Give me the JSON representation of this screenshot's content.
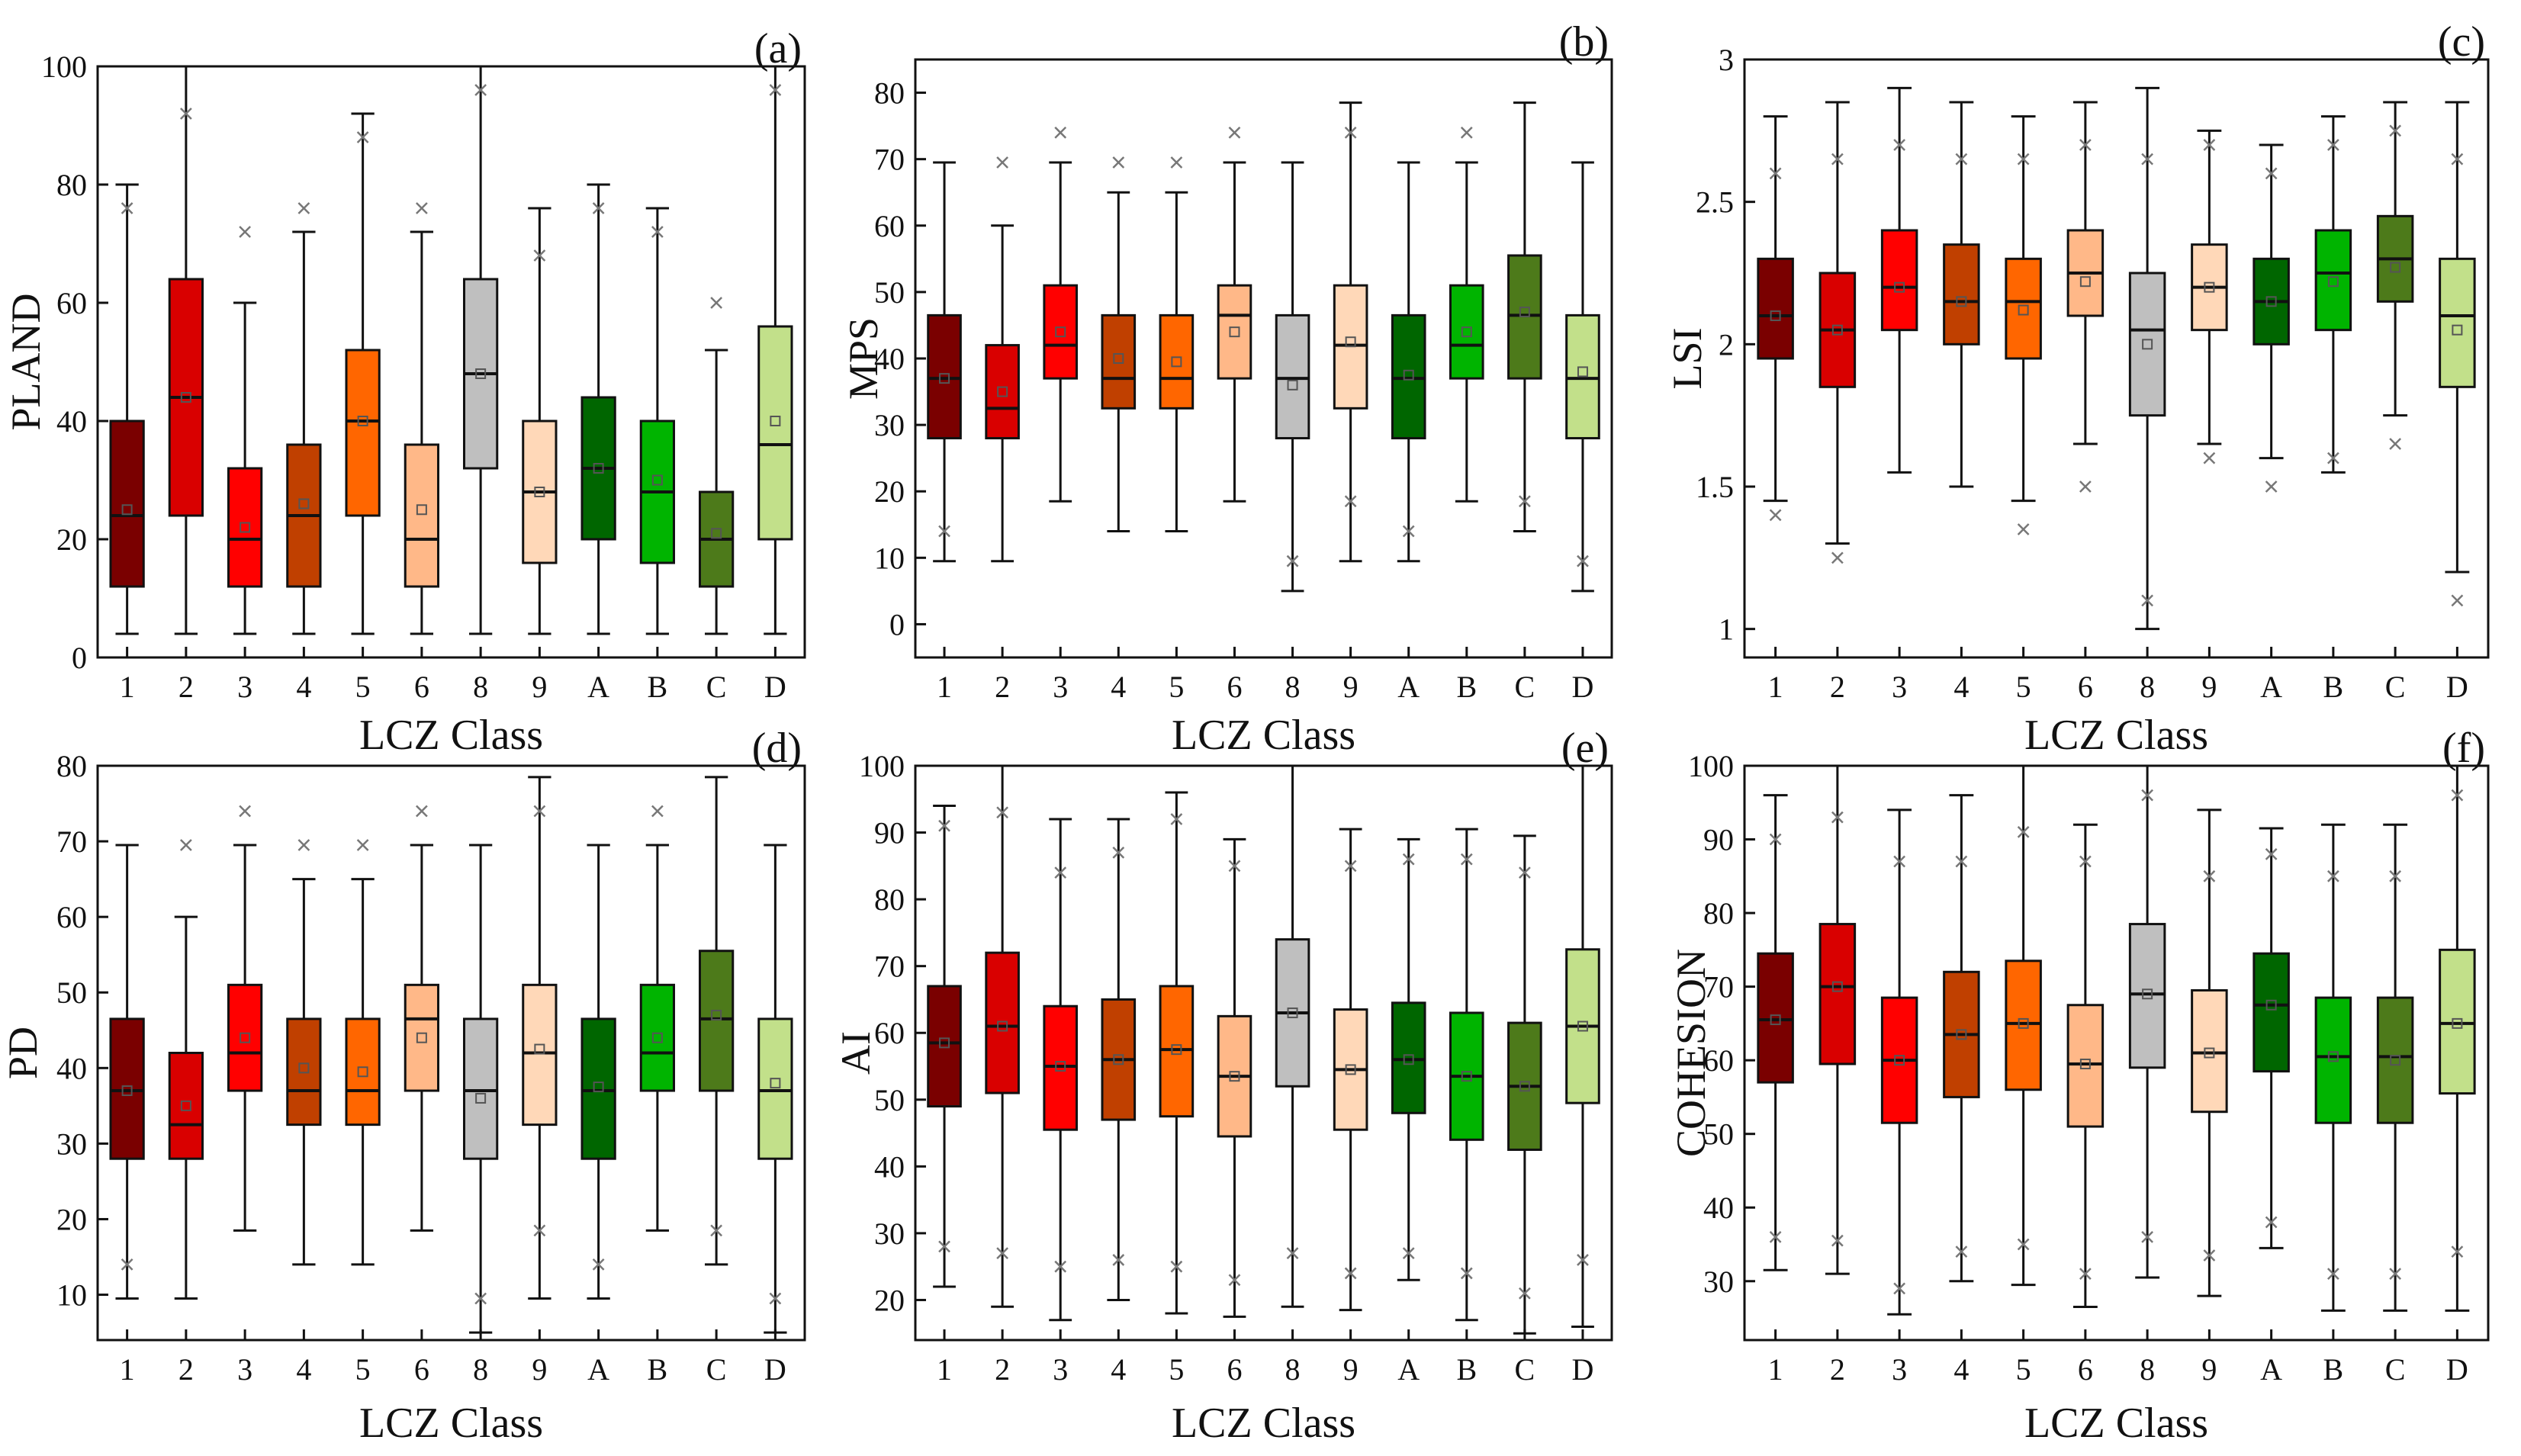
{
  "colors": [
    "#7a0000",
    "#d90000",
    "#ff0000",
    "#c04000",
    "#ff6600",
    "#ffb888",
    "#bfbfbf",
    "#ffd8b8",
    "#006600",
    "#00b400",
    "#4d7a1a",
    "#c2e08a"
  ],
  "chart_data": [
    {
      "type": "box",
      "panel": "(a)",
      "ylabel": "PLAND",
      "xlabel": "LCZ Class",
      "categories": [
        "1",
        "2",
        "3",
        "4",
        "5",
        "6",
        "8",
        "9",
        "A",
        "B",
        "C",
        "D"
      ],
      "ylim": [
        0,
        100
      ],
      "yticks": [
        0,
        20,
        40,
        60,
        80,
        100
      ],
      "boxes": [
        {
          "min": 4,
          "q1": 12,
          "median": 24,
          "q3": 40,
          "max": 80,
          "mean": 25,
          "outliers": [
            76
          ]
        },
        {
          "min": 4,
          "q1": 24,
          "median": 44,
          "q3": 64,
          "max": 100,
          "mean": 44,
          "outliers": [
            92
          ]
        },
        {
          "min": 4,
          "q1": 12,
          "median": 20,
          "q3": 32,
          "max": 60,
          "mean": 22,
          "outliers": [
            72
          ]
        },
        {
          "min": 4,
          "q1": 12,
          "median": 24,
          "q3": 36,
          "max": 72,
          "mean": 26,
          "outliers": [
            76
          ]
        },
        {
          "min": 4,
          "q1": 24,
          "median": 40,
          "q3": 52,
          "max": 92,
          "mean": 40,
          "outliers": [
            88
          ]
        },
        {
          "min": 4,
          "q1": 12,
          "median": 20,
          "q3": 36,
          "max": 72,
          "mean": 25,
          "outliers": [
            76
          ]
        },
        {
          "min": 4,
          "q1": 32,
          "median": 48,
          "q3": 64,
          "max": 100,
          "mean": 48,
          "outliers": [
            96
          ]
        },
        {
          "min": 4,
          "q1": 16,
          "median": 28,
          "q3": 40,
          "max": 76,
          "mean": 28,
          "outliers": [
            68
          ]
        },
        {
          "min": 4,
          "q1": 20,
          "median": 32,
          "q3": 44,
          "max": 80,
          "mean": 32,
          "outliers": [
            76
          ]
        },
        {
          "min": 4,
          "q1": 16,
          "median": 28,
          "q3": 40,
          "max": 76,
          "mean": 30,
          "outliers": [
            72
          ]
        },
        {
          "min": 4,
          "q1": 12,
          "median": 20,
          "q3": 28,
          "max": 52,
          "mean": 21,
          "outliers": [
            60
          ]
        },
        {
          "min": 4,
          "q1": 20,
          "median": 36,
          "q3": 56,
          "max": 100,
          "mean": 40,
          "outliers": [
            96
          ]
        }
      ]
    },
    {
      "type": "box",
      "panel": "(b)",
      "ylabel": "MPS",
      "xlabel": "LCZ Class",
      "categories": [
        "1",
        "2",
        "3",
        "4",
        "5",
        "6",
        "8",
        "9",
        "A",
        "B",
        "C",
        "D"
      ],
      "ylim": [
        -5,
        85
      ],
      "yticks": [
        0,
        10,
        20,
        30,
        40,
        50,
        60,
        70,
        80
      ],
      "boxes": [
        {
          "min": 9.5,
          "q1": 28,
          "median": 37,
          "q3": 46.5,
          "max": 69.5,
          "mean": 37,
          "outliers": [
            14
          ]
        },
        {
          "min": 9.5,
          "q1": 28,
          "median": 32.5,
          "q3": 42,
          "max": 60,
          "mean": 35,
          "outliers": [
            69.5
          ]
        },
        {
          "min": 18.5,
          "q1": 37,
          "median": 42,
          "q3": 51,
          "max": 69.5,
          "mean": 44,
          "outliers": [
            74
          ]
        },
        {
          "min": 14,
          "q1": 32.5,
          "median": 37,
          "q3": 46.5,
          "max": 65,
          "mean": 40,
          "outliers": [
            69.5
          ]
        },
        {
          "min": 14,
          "q1": 32.5,
          "median": 37,
          "q3": 46.5,
          "max": 65,
          "mean": 39.5,
          "outliers": [
            69.5
          ]
        },
        {
          "min": 18.5,
          "q1": 37,
          "median": 46.5,
          "q3": 51,
          "max": 69.5,
          "mean": 44,
          "outliers": [
            74
          ]
        },
        {
          "min": 5,
          "q1": 28,
          "median": 37,
          "q3": 46.5,
          "max": 69.5,
          "mean": 36,
          "outliers": [
            9.5
          ]
        },
        {
          "min": 9.5,
          "q1": 32.5,
          "median": 42,
          "q3": 51,
          "max": 78.5,
          "mean": 42.5,
          "outliers": [
            74,
            18.5
          ]
        },
        {
          "min": 9.5,
          "q1": 28,
          "median": 37,
          "q3": 46.5,
          "max": 69.5,
          "mean": 37.5,
          "outliers": [
            14
          ]
        },
        {
          "min": 18.5,
          "q1": 37,
          "median": 42,
          "q3": 51,
          "max": 69.5,
          "mean": 44,
          "outliers": [
            74
          ]
        },
        {
          "min": 14,
          "q1": 37,
          "median": 46.5,
          "q3": 55.5,
          "max": 78.5,
          "mean": 47,
          "outliers": [
            18.5
          ]
        },
        {
          "min": 5,
          "q1": 28,
          "median": 37,
          "q3": 46.5,
          "max": 69.5,
          "mean": 38,
          "outliers": [
            9.5
          ]
        }
      ]
    },
    {
      "type": "box",
      "panel": "(c)",
      "ylabel": "LSI",
      "xlabel": "LCZ Class",
      "categories": [
        "1",
        "2",
        "3",
        "4",
        "5",
        "6",
        "8",
        "9",
        "A",
        "B",
        "C",
        "D"
      ],
      "ylim": [
        0.9,
        3.0
      ],
      "yticks": [
        1.0,
        1.5,
        2.0,
        2.5,
        3.0
      ],
      "boxes": [
        {
          "min": 1.45,
          "q1": 1.95,
          "median": 2.1,
          "q3": 2.3,
          "max": 2.8,
          "mean": 2.1,
          "outliers": [
            1.4,
            2.6
          ]
        },
        {
          "min": 1.3,
          "q1": 1.85,
          "median": 2.05,
          "q3": 2.25,
          "max": 2.85,
          "mean": 2.05,
          "outliers": [
            1.25,
            2.65
          ]
        },
        {
          "min": 1.55,
          "q1": 2.05,
          "median": 2.2,
          "q3": 2.4,
          "max": 2.9,
          "mean": 2.2,
          "outliers": [
            2.7
          ]
        },
        {
          "min": 1.5,
          "q1": 2.0,
          "median": 2.15,
          "q3": 2.35,
          "max": 2.85,
          "mean": 2.15,
          "outliers": [
            2.65
          ]
        },
        {
          "min": 1.45,
          "q1": 1.95,
          "median": 2.15,
          "q3": 2.3,
          "max": 2.8,
          "mean": 2.12,
          "outliers": [
            1.35,
            2.65
          ]
        },
        {
          "min": 1.65,
          "q1": 2.1,
          "median": 2.25,
          "q3": 2.4,
          "max": 2.85,
          "mean": 2.22,
          "outliers": [
            1.5,
            2.7
          ]
        },
        {
          "min": 1.0,
          "q1": 1.75,
          "median": 2.05,
          "q3": 2.25,
          "max": 2.9,
          "mean": 2.0,
          "outliers": [
            1.1,
            2.65
          ]
        },
        {
          "min": 1.65,
          "q1": 2.05,
          "median": 2.2,
          "q3": 2.35,
          "max": 2.75,
          "mean": 2.2,
          "outliers": [
            1.6,
            2.7
          ]
        },
        {
          "min": 1.6,
          "q1": 2.0,
          "median": 2.15,
          "q3": 2.3,
          "max": 2.7,
          "mean": 2.15,
          "outliers": [
            1.5,
            2.6
          ]
        },
        {
          "min": 1.55,
          "q1": 2.05,
          "median": 2.25,
          "q3": 2.4,
          "max": 2.8,
          "mean": 2.22,
          "outliers": [
            1.6,
            2.7
          ]
        },
        {
          "min": 1.75,
          "q1": 2.15,
          "median": 2.3,
          "q3": 2.45,
          "max": 2.85,
          "mean": 2.27,
          "outliers": [
            1.65,
            2.75
          ]
        },
        {
          "min": 1.2,
          "q1": 1.85,
          "median": 2.1,
          "q3": 2.3,
          "max": 2.85,
          "mean": 2.05,
          "outliers": [
            1.1,
            2.65
          ]
        }
      ]
    },
    {
      "type": "box",
      "panel": "(d)",
      "ylabel": "PD",
      "xlabel": "LCZ Class",
      "categories": [
        "1",
        "2",
        "3",
        "4",
        "5",
        "6",
        "8",
        "9",
        "A",
        "B",
        "C",
        "D"
      ],
      "ylim": [
        4,
        80
      ],
      "yticks": [
        10,
        20,
        30,
        40,
        50,
        60,
        70,
        80
      ],
      "boxes": [
        {
          "min": 9.5,
          "q1": 28,
          "median": 37,
          "q3": 46.5,
          "max": 69.5,
          "mean": 37,
          "outliers": [
            14
          ]
        },
        {
          "min": 9.5,
          "q1": 28,
          "median": 32.5,
          "q3": 42,
          "max": 60,
          "mean": 35,
          "outliers": [
            69.5
          ]
        },
        {
          "min": 18.5,
          "q1": 37,
          "median": 42,
          "q3": 51,
          "max": 69.5,
          "mean": 44,
          "outliers": [
            74
          ]
        },
        {
          "min": 14,
          "q1": 32.5,
          "median": 37,
          "q3": 46.5,
          "max": 65,
          "mean": 40,
          "outliers": [
            69.5
          ]
        },
        {
          "min": 14,
          "q1": 32.5,
          "median": 37,
          "q3": 46.5,
          "max": 65,
          "mean": 39.5,
          "outliers": [
            69.5
          ]
        },
        {
          "min": 18.5,
          "q1": 37,
          "median": 46.5,
          "q3": 51,
          "max": 69.5,
          "mean": 44,
          "outliers": [
            74
          ]
        },
        {
          "min": 5,
          "q1": 28,
          "median": 37,
          "q3": 46.5,
          "max": 69.5,
          "mean": 36,
          "outliers": [
            9.5
          ]
        },
        {
          "min": 9.5,
          "q1": 32.5,
          "median": 42,
          "q3": 51,
          "max": 78.5,
          "mean": 42.5,
          "outliers": [
            74,
            18.5
          ]
        },
        {
          "min": 9.5,
          "q1": 28,
          "median": 37,
          "q3": 46.5,
          "max": 69.5,
          "mean": 37.5,
          "outliers": [
            14
          ]
        },
        {
          "min": 18.5,
          "q1": 37,
          "median": 42,
          "q3": 51,
          "max": 69.5,
          "mean": 44,
          "outliers": [
            74
          ]
        },
        {
          "min": 14,
          "q1": 37,
          "median": 46.5,
          "q3": 55.5,
          "max": 78.5,
          "mean": 47,
          "outliers": [
            18.5
          ]
        },
        {
          "min": 5,
          "q1": 28,
          "median": 37,
          "q3": 46.5,
          "max": 69.5,
          "mean": 38,
          "outliers": [
            9.5
          ]
        }
      ]
    },
    {
      "type": "box",
      "panel": "(e)",
      "ylabel": "AI",
      "xlabel": "LCZ Class",
      "categories": [
        "1",
        "2",
        "3",
        "4",
        "5",
        "6",
        "8",
        "9",
        "A",
        "B",
        "C",
        "D"
      ],
      "ylim": [
        14,
        100
      ],
      "yticks": [
        20,
        30,
        40,
        50,
        60,
        70,
        80,
        90,
        100
      ],
      "boxes": [
        {
          "min": 22,
          "q1": 49,
          "median": 58.5,
          "q3": 67,
          "max": 94,
          "mean": 58.5,
          "outliers": [
            28,
            91
          ]
        },
        {
          "min": 19,
          "q1": 51,
          "median": 61,
          "q3": 72,
          "max": 100,
          "mean": 61,
          "outliers": [
            27,
            93
          ]
        },
        {
          "min": 17,
          "q1": 45.5,
          "median": 55,
          "q3": 64,
          "max": 92,
          "mean": 55,
          "outliers": [
            25,
            84
          ]
        },
        {
          "min": 20,
          "q1": 47,
          "median": 56,
          "q3": 65,
          "max": 92,
          "mean": 56,
          "outliers": [
            26,
            87
          ]
        },
        {
          "min": 18,
          "q1": 47.5,
          "median": 57.5,
          "q3": 67,
          "max": 96,
          "mean": 57.5,
          "outliers": [
            25,
            92
          ]
        },
        {
          "min": 17.5,
          "q1": 44.5,
          "median": 53.5,
          "q3": 62.5,
          "max": 89,
          "mean": 53.5,
          "outliers": [
            23,
            85
          ]
        },
        {
          "min": 19,
          "q1": 52,
          "median": 63,
          "q3": 74,
          "max": 100,
          "mean": 63,
          "outliers": [
            27
          ]
        },
        {
          "min": 18.5,
          "q1": 45.5,
          "median": 54.5,
          "q3": 63.5,
          "max": 90.5,
          "mean": 54.5,
          "outliers": [
            24,
            85
          ]
        },
        {
          "min": 23,
          "q1": 48,
          "median": 56,
          "q3": 64.5,
          "max": 89,
          "mean": 56,
          "outliers": [
            27,
            86
          ]
        },
        {
          "min": 17,
          "q1": 44,
          "median": 53.5,
          "q3": 63,
          "max": 90.5,
          "mean": 53.5,
          "outliers": [
            24,
            86
          ]
        },
        {
          "min": 15,
          "q1": 42.5,
          "median": 52,
          "q3": 61.5,
          "max": 89.5,
          "mean": 52,
          "outliers": [
            21,
            84
          ]
        },
        {
          "min": 16,
          "q1": 49.5,
          "median": 61,
          "q3": 72.5,
          "max": 100,
          "mean": 61,
          "outliers": [
            26
          ]
        }
      ]
    },
    {
      "type": "box",
      "panel": "(f)",
      "ylabel": "COHESION",
      "xlabel": "LCZ Class",
      "categories": [
        "1",
        "2",
        "3",
        "4",
        "5",
        "6",
        "8",
        "9",
        "A",
        "B",
        "C",
        "D"
      ],
      "ylim": [
        22,
        100
      ],
      "yticks": [
        30,
        40,
        50,
        60,
        70,
        80,
        90,
        100
      ],
      "boxes": [
        {
          "min": 31.5,
          "q1": 57,
          "median": 65.5,
          "q3": 74.5,
          "max": 96,
          "mean": 65.5,
          "outliers": [
            36,
            90
          ]
        },
        {
          "min": 31,
          "q1": 59.5,
          "median": 70,
          "q3": 78.5,
          "max": 100,
          "mean": 70,
          "outliers": [
            35.5,
            93
          ]
        },
        {
          "min": 25.5,
          "q1": 51.5,
          "median": 60,
          "q3": 68.5,
          "max": 94,
          "mean": 60,
          "outliers": [
            29,
            87
          ]
        },
        {
          "min": 30,
          "q1": 55,
          "median": 63.5,
          "q3": 72,
          "max": 96,
          "mean": 63.5,
          "outliers": [
            34,
            87
          ]
        },
        {
          "min": 29.5,
          "q1": 56,
          "median": 65,
          "q3": 73.5,
          "max": 100,
          "mean": 65,
          "outliers": [
            35,
            91
          ]
        },
        {
          "min": 26.5,
          "q1": 51,
          "median": 59.5,
          "q3": 67.5,
          "max": 92,
          "mean": 59.5,
          "outliers": [
            31,
            87
          ]
        },
        {
          "min": 30.5,
          "q1": 59,
          "median": 69,
          "q3": 78.5,
          "max": 100,
          "mean": 69,
          "outliers": [
            36,
            96
          ]
        },
        {
          "min": 28,
          "q1": 53,
          "median": 61,
          "q3": 69.5,
          "max": 94,
          "mean": 61,
          "outliers": [
            33.5,
            85
          ]
        },
        {
          "min": 34.5,
          "q1": 58.5,
          "median": 67.5,
          "q3": 74.5,
          "max": 91.5,
          "mean": 67.5,
          "outliers": [
            38,
            88
          ]
        },
        {
          "min": 26,
          "q1": 51.5,
          "median": 60.5,
          "q3": 68.5,
          "max": 92,
          "mean": 60.5,
          "outliers": [
            31,
            85
          ]
        },
        {
          "min": 26,
          "q1": 51.5,
          "median": 60.5,
          "q3": 68.5,
          "max": 92,
          "mean": 60,
          "outliers": [
            31,
            85
          ]
        },
        {
          "min": 26,
          "q1": 55.5,
          "median": 65,
          "q3": 75,
          "max": 100,
          "mean": 65,
          "outliers": [
            34,
            96
          ]
        }
      ]
    }
  ]
}
